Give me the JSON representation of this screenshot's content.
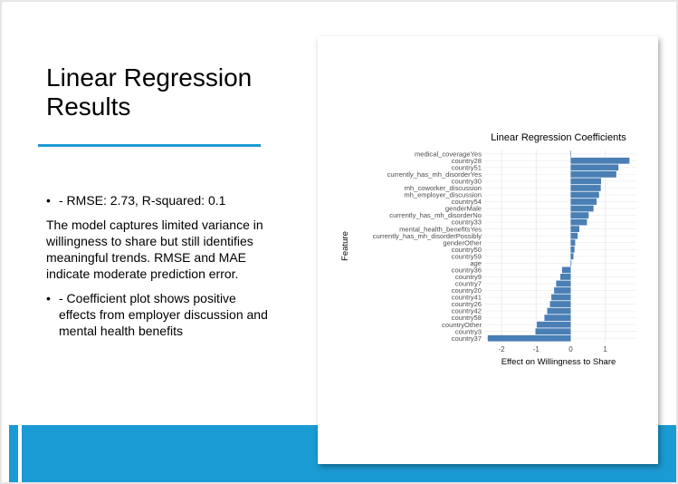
{
  "slide": {
    "title_line1": "Linear Regression",
    "title_line2": "Results",
    "bullet1": "- RMSE: 2.73, R-squared: 0.1",
    "paragraph": "The model captures limited variance in willingness to share but still identifies meaningful trends. RMSE and MAE indicate moderate prediction error.",
    "bullet2": "- Coefficient plot shows positive effects from employer discussion and mental health benefits",
    "bullet_glyph": "•"
  },
  "colors": {
    "accent": "#1b9bd3",
    "bar": "#4a7fb5",
    "grid": "#ebebeb"
  },
  "chart_data": {
    "type": "bar",
    "orientation": "horizontal",
    "title": "Linear Regression Coefficients",
    "xlabel": "Effect on Willingness to Share",
    "ylabel": "Feature",
    "xlim": [
      -2.5,
      1.9
    ],
    "xticks": [
      -2,
      -1,
      0,
      1
    ],
    "xtick_labels": [
      "-2",
      "-1",
      "0",
      "1"
    ],
    "grid": true,
    "categories": [
      "medical_coverageYes",
      "country28",
      "country51",
      "currently_has_mh_disorderYes",
      "country30",
      "mh_coworker_discussion",
      "mh_employer_discussion",
      "country54",
      "genderMale",
      "currently_has_mh_disorderNo",
      "country33",
      "mental_health_benefitsYes",
      "currently_has_mh_disorderPossibly",
      "genderOther",
      "country50",
      "country59",
      "age",
      "country36",
      "country9",
      "country7",
      "country20",
      "country41",
      "country26",
      "country42",
      "country58",
      "countryOther",
      "country3",
      "country37"
    ],
    "values": [
      0,
      1.7,
      1.38,
      1.32,
      0.88,
      0.87,
      0.82,
      0.75,
      0.66,
      0.52,
      0.47,
      0.25,
      0.2,
      0.13,
      0.11,
      0.08,
      0.02,
      -0.25,
      -0.3,
      -0.42,
      -0.48,
      -0.56,
      -0.6,
      -0.68,
      -0.76,
      -0.98,
      -1.02,
      -2.4
    ]
  }
}
